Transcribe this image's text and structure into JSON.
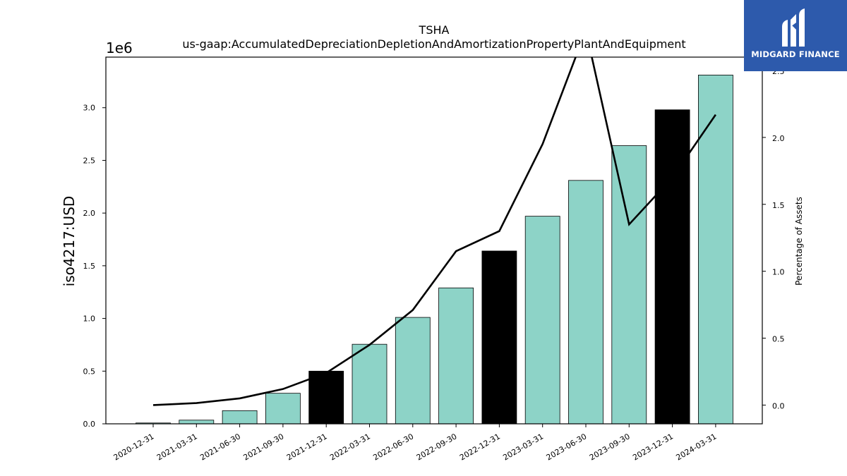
{
  "chart_data": {
    "type": "bar+line",
    "title": "TSHA",
    "subtitle": "us-gaap:AccumulatedDepreciationDepletionAndAmortizationPropertyPlantAndEquipment",
    "ylabel": "iso4217:USD",
    "y_offset_label": "1e6",
    "y2label": "Percentage of Assets",
    "categories": [
      "2020-12-31",
      "2021-03-31",
      "2021-06-30",
      "2021-09-30",
      "2021-12-31",
      "2022-03-31",
      "2022-06-30",
      "2022-09-30",
      "2022-12-31",
      "2023-03-31",
      "2023-06-30",
      "2023-09-30",
      "2023-12-31",
      "2024-03-31"
    ],
    "bar_values": [
      8000,
      35000,
      125000,
      290000,
      500000,
      755000,
      1010000,
      1290000,
      1640000,
      1970000,
      2310000,
      2640000,
      2980000,
      3310000
    ],
    "bar_colors": [
      "#8dd3c7",
      "#8dd3c7",
      "#8dd3c7",
      "#8dd3c7",
      "#000000",
      "#8dd3c7",
      "#8dd3c7",
      "#8dd3c7",
      "#000000",
      "#8dd3c7",
      "#8dd3c7",
      "#8dd3c7",
      "#000000",
      "#8dd3c7"
    ],
    "line_values": [
      0.0,
      0.015,
      0.05,
      0.12,
      0.24,
      0.45,
      0.71,
      1.15,
      1.3,
      1.95,
      2.8,
      1.35,
      1.7,
      2.17
    ],
    "ylim": [
      0,
      3480000
    ],
    "y_ticks": [
      0,
      500000,
      1000000,
      1500000,
      2000000,
      2500000,
      3000000
    ],
    "y_tick_labels": [
      "0.0",
      "0.5",
      "1.0",
      "1.5",
      "2.0",
      "2.5",
      "3.0"
    ],
    "y2lim": [
      -0.14,
      2.6
    ],
    "y2_ticks": [
      0.0,
      0.5,
      1.0,
      1.5,
      2.0,
      2.5
    ],
    "y2_tick_labels": [
      "0.0",
      "0.5",
      "1.0",
      "1.5",
      "2.0",
      "2.5"
    ],
    "grid": false,
    "legend": "none"
  },
  "logo": {
    "text": "MIDGARD FINANCE",
    "bg_color": "#2d5aac"
  }
}
